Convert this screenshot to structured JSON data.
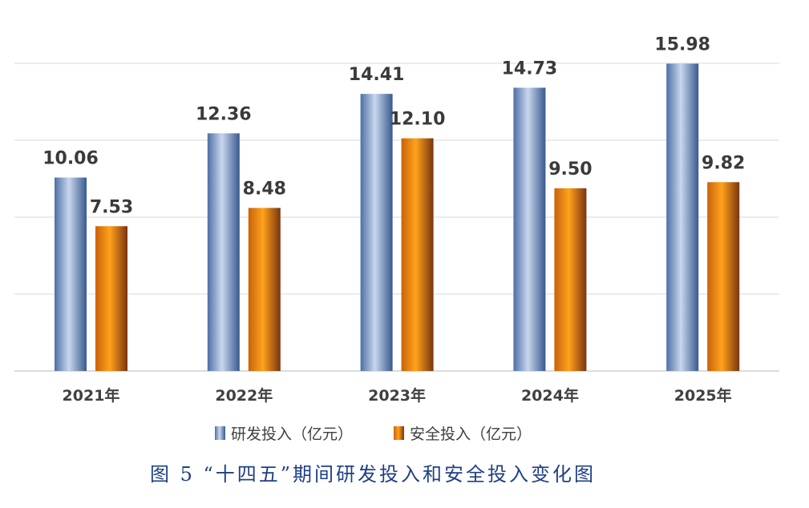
{
  "chart_data": {
    "type": "bar",
    "categories": [
      "2021年",
      "2022年",
      "2023年",
      "2024年",
      "2025年"
    ],
    "series": [
      {
        "name": "研发投入（亿元）",
        "values": [
          10.06,
          12.36,
          14.41,
          14.73,
          15.98
        ],
        "color": "#7f9fcf"
      },
      {
        "name": "安全投入（亿元）",
        "values": [
          7.53,
          8.48,
          12.1,
          9.5,
          9.82
        ],
        "color": "#f29a1e"
      }
    ],
    "value_labels": [
      [
        "10.06",
        "12.36",
        "14.41",
        "14.73",
        "15.98"
      ],
      [
        "7.53",
        "8.48",
        "12.10",
        "9.50",
        "9.82"
      ]
    ],
    "ylim": [
      0,
      16
    ],
    "ygrid_step": 4,
    "grid": true,
    "legend_position": "bottom"
  },
  "caption": "图 5 “十四五”期间研发投入和安全投入变化图"
}
